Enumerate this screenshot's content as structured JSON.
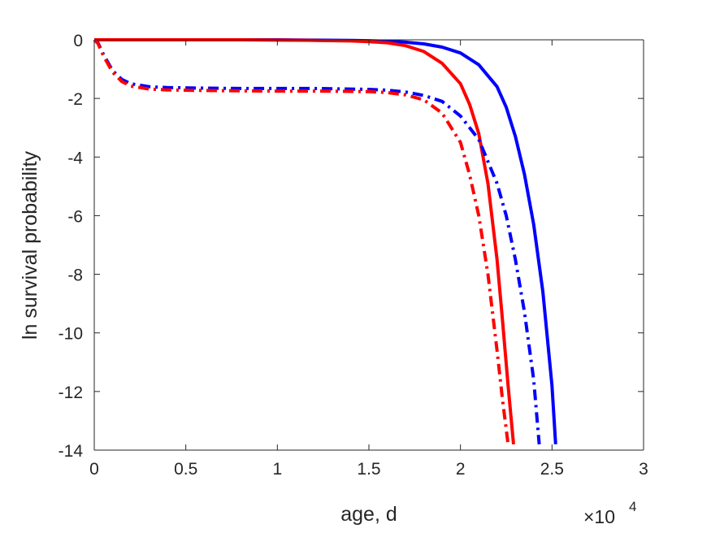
{
  "chart_data": {
    "type": "line",
    "xlabel": "age, d",
    "ylabel": "ln survival probability",
    "x_exponent_multiplier": "×10",
    "x_exponent_power": "4",
    "xlim": [
      0,
      30000
    ],
    "ylim": [
      -14,
      0
    ],
    "x_tick_values": [
      0,
      5000,
      10000,
      15000,
      20000,
      25000,
      30000
    ],
    "x_tick_labels": [
      "0",
      "0.5",
      "1",
      "1.5",
      "2",
      "2.5",
      "3"
    ],
    "y_tick_values": [
      0,
      -2,
      -4,
      -6,
      -8,
      -10,
      -12,
      -14
    ],
    "y_tick_labels": [
      "0",
      "-2",
      "-4",
      "-6",
      "-8",
      "-10",
      "-12",
      "-14"
    ],
    "grid": false,
    "series": [
      {
        "color": "#0000ff",
        "dash": "solid",
        "x": [
          0,
          2000,
          5000,
          8000,
          10000,
          12000,
          14000,
          15000,
          16000,
          17000,
          18000,
          19000,
          20000,
          21000,
          22000,
          22500,
          23000,
          23500,
          24000,
          24500,
          25000,
          25200
        ],
        "y": [
          0,
          0,
          0,
          0,
          0,
          -0.01,
          -0.02,
          -0.03,
          -0.05,
          -0.08,
          -0.14,
          -0.25,
          -0.45,
          -0.85,
          -1.6,
          -2.3,
          -3.3,
          -4.6,
          -6.3,
          -8.6,
          -11.8,
          -13.8
        ]
      },
      {
        "color": "#ff0000",
        "dash": "solid",
        "x": [
          0,
          2000,
          5000,
          8000,
          10000,
          12000,
          14000,
          15000,
          16000,
          17000,
          18000,
          19000,
          20000,
          20500,
          21000,
          21500,
          22000,
          22300,
          22600,
          22900
        ],
        "y": [
          0,
          0,
          0,
          0,
          -0.01,
          -0.02,
          -0.04,
          -0.06,
          -0.1,
          -0.2,
          -0.4,
          -0.8,
          -1.5,
          -2.2,
          -3.2,
          -4.9,
          -7.5,
          -9.6,
          -11.8,
          -13.8
        ]
      },
      {
        "color": "#0000ff",
        "dash": "dashdot",
        "x": [
          0,
          200,
          500,
          1000,
          1500,
          2000,
          3000,
          4000,
          6000,
          8000,
          10000,
          12000,
          14000,
          15000,
          16000,
          17000,
          18000,
          19000,
          20000,
          21000,
          22000,
          22500,
          23000,
          23500,
          24000,
          24300
        ],
        "y": [
          0,
          -0.1,
          -0.5,
          -1.05,
          -1.35,
          -1.5,
          -1.6,
          -1.63,
          -1.65,
          -1.66,
          -1.66,
          -1.66,
          -1.68,
          -1.69,
          -1.72,
          -1.78,
          -1.9,
          -2.1,
          -2.6,
          -3.4,
          -4.9,
          -6.0,
          -7.5,
          -9.3,
          -11.6,
          -13.8
        ]
      },
      {
        "color": "#ff0000",
        "dash": "dashdot",
        "x": [
          0,
          200,
          500,
          1000,
          1500,
          2000,
          3000,
          4000,
          6000,
          8000,
          10000,
          12000,
          14000,
          15000,
          16000,
          17000,
          18000,
          19000,
          20000,
          20500,
          21000,
          21500,
          22000,
          22300,
          22600
        ],
        "y": [
          0,
          -0.12,
          -0.55,
          -1.1,
          -1.42,
          -1.58,
          -1.68,
          -1.71,
          -1.73,
          -1.74,
          -1.75,
          -1.75,
          -1.76,
          -1.77,
          -1.8,
          -1.88,
          -2.05,
          -2.5,
          -3.5,
          -4.6,
          -6.0,
          -8.0,
          -10.6,
          -12.3,
          -13.8
        ]
      }
    ]
  }
}
